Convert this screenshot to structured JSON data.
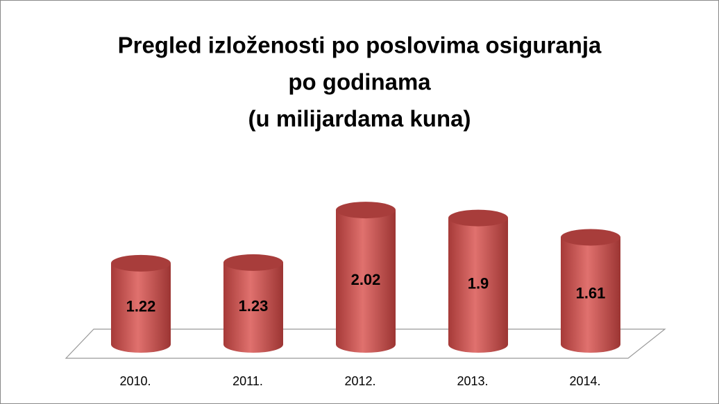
{
  "chart_data": {
    "type": "bar3d",
    "title": [
      "Pregled izloženosti po poslovima osiguranja",
      "po godinama",
      "(u milijardama kuna)"
    ],
    "categories": [
      "2010.",
      "2011.",
      "2012.",
      "2013.",
      "2014."
    ],
    "values": [
      1.22,
      1.23,
      2.02,
      1.9,
      1.61
    ],
    "color": "#c0504d"
  }
}
